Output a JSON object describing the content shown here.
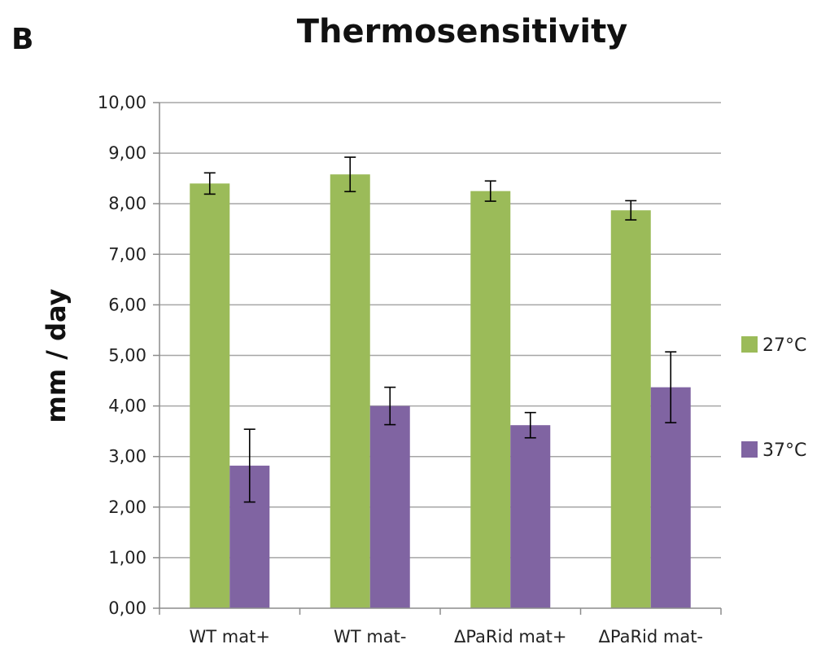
{
  "panel_label": "B",
  "colors": {
    "series_27": "#9BBB59",
    "series_37": "#8064A2",
    "gridline": "#a6a6a6",
    "axis": "#8c8c8c",
    "error_bar": "#000000"
  },
  "chart_data": {
    "type": "bar",
    "title": "Thermosensitivity",
    "xlabel": "",
    "ylabel": "mm / day",
    "ylim": [
      0,
      10
    ],
    "ytick_step": 1,
    "ytick_labels": [
      "0,00",
      "1,00",
      "2,00",
      "3,00",
      "4,00",
      "5,00",
      "6,00",
      "7,00",
      "8,00",
      "9,00",
      "10,00"
    ],
    "grid": true,
    "legend_position": "right",
    "categories": [
      "WT mat+",
      "WT mat-",
      "ΔPaRid mat+",
      "ΔPaRid mat-"
    ],
    "series": [
      {
        "name": "27°C",
        "color": "#9BBB59",
        "values": [
          8.4,
          8.58,
          8.25,
          7.87
        ],
        "errors": [
          0.21,
          0.34,
          0.2,
          0.19
        ]
      },
      {
        "name": "37°C",
        "color": "#8064A2",
        "values": [
          2.82,
          4.0,
          3.62,
          4.37
        ],
        "errors": [
          0.72,
          0.37,
          0.25,
          0.7
        ]
      }
    ]
  }
}
